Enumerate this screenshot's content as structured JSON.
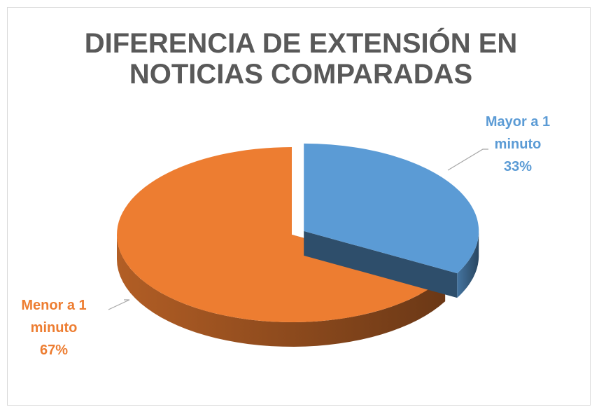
{
  "chart_data": {
    "type": "pie",
    "title": "DIFERENCIA DE EXTENSIÓN EN NOTICIAS COMPARADAS",
    "categories": [
      "Mayor a 1 minuto",
      "Menor a 1 minuto"
    ],
    "values": [
      33,
      67
    ],
    "value_labels": [
      "33%",
      "67%"
    ],
    "colors": [
      "#5b9bd5",
      "#ed7d31"
    ]
  }
}
